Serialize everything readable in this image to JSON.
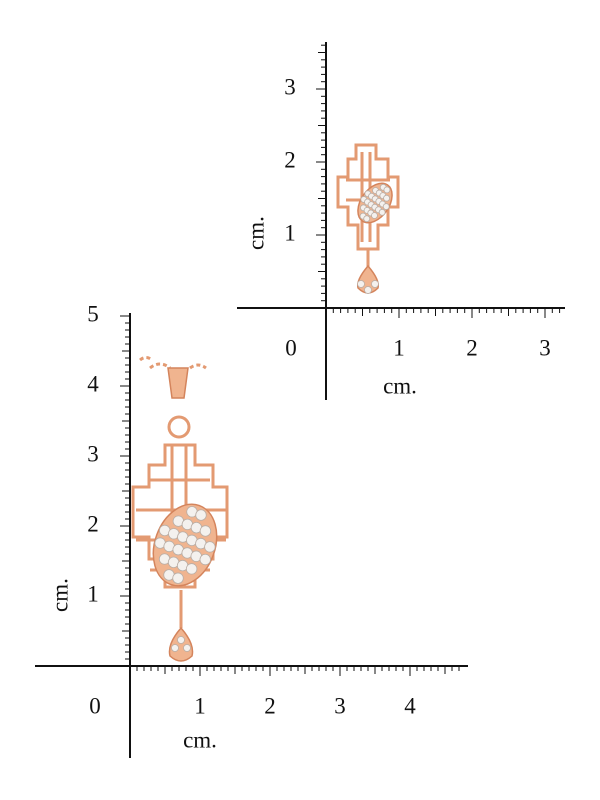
{
  "top_ruler": {
    "y_labels": [
      "1",
      "2",
      "3"
    ],
    "x_labels": [
      "0",
      "1",
      "2",
      "3"
    ],
    "y_unit": "cm.",
    "x_unit": "cm."
  },
  "bottom_ruler": {
    "y_labels": [
      "1",
      "2",
      "3",
      "4",
      "5"
    ],
    "x_labels": [
      "0",
      "1",
      "2",
      "3",
      "4"
    ],
    "y_unit": "cm.",
    "x_unit": "cm."
  }
}
